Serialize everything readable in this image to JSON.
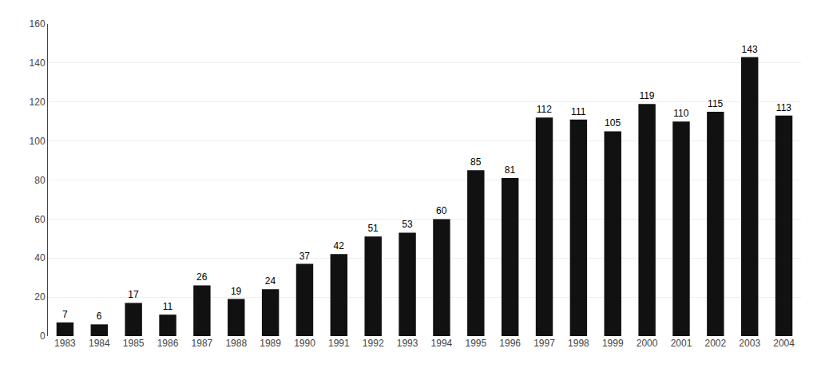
{
  "chart_data": {
    "type": "bar",
    "categories": [
      "1983",
      "1984",
      "1985",
      "1986",
      "1987",
      "1988",
      "1989",
      "1990",
      "1991",
      "1992",
      "1993",
      "1994",
      "1995",
      "1996",
      "1997",
      "1998",
      "1999",
      "2000",
      "2001",
      "2002",
      "2003",
      "2004"
    ],
    "values": [
      7,
      6,
      17,
      11,
      26,
      19,
      24,
      37,
      42,
      51,
      53,
      60,
      85,
      81,
      112,
      111,
      105,
      119,
      110,
      115,
      143,
      113
    ],
    "color": "#111111",
    "ylim": [
      0,
      160
    ],
    "yticks": [
      0,
      20,
      40,
      60,
      80,
      100,
      120,
      140,
      160
    ],
    "grid": true,
    "data_labels": true
  }
}
